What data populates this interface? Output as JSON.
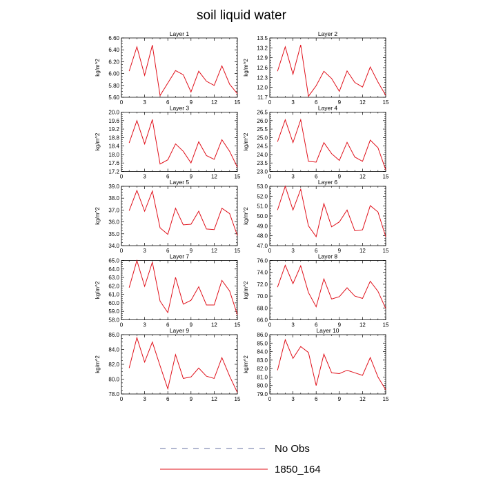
{
  "title": "soil liquid water",
  "legend": [
    {
      "label": "No Obs",
      "color": "#6670a0",
      "dash": true
    },
    {
      "label": "1850_164",
      "color": "#e0101a",
      "dash": false
    }
  ],
  "chart_data": [
    {
      "type": "line",
      "title": "Layer 1",
      "ylabel": "kg/m^2",
      "xlim": [
        0,
        15
      ],
      "ylim": [
        5.6,
        6.6
      ],
      "yticks": [
        "5.60",
        "5.80",
        "6.00",
        "6.20",
        "6.40",
        "6.60"
      ],
      "xticks": [
        "0",
        "3",
        "6",
        "9",
        "12",
        "15"
      ],
      "series": [
        {
          "name": "1850_164",
          "x": [
            1,
            2,
            3,
            4,
            5,
            6,
            7,
            8,
            9,
            10,
            11,
            12,
            13,
            14,
            15
          ],
          "values": [
            6.04,
            6.45,
            5.97,
            6.48,
            5.63,
            5.84,
            6.05,
            5.98,
            5.69,
            6.04,
            5.87,
            5.8,
            6.13,
            5.82,
            5.66
          ]
        }
      ]
    },
    {
      "type": "line",
      "title": "Layer 2",
      "ylabel": "kg/m^2",
      "xlim": [
        0,
        15
      ],
      "ylim": [
        11.7,
        13.5
      ],
      "yticks": [
        "11.7",
        "12.0",
        "12.3",
        "12.6",
        "12.9",
        "13.2",
        "13.5"
      ],
      "xticks": [
        "0",
        "3",
        "6",
        "9",
        "12",
        "15"
      ],
      "series": [
        {
          "name": "1850_164",
          "x": [
            1,
            2,
            3,
            4,
            5,
            6,
            7,
            8,
            9,
            10,
            11,
            12,
            13,
            14,
            15
          ],
          "values": [
            12.49,
            13.23,
            12.4,
            13.29,
            11.73,
            12.05,
            12.49,
            12.27,
            11.88,
            12.5,
            12.15,
            12.01,
            12.62,
            12.16,
            11.76
          ]
        }
      ]
    },
    {
      "type": "line",
      "title": "Layer 3",
      "ylabel": "kg/m^2",
      "xlim": [
        0,
        15
      ],
      "ylim": [
        17.2,
        20.0
      ],
      "yticks": [
        "17.2",
        "17.6",
        "18.0",
        "18.4",
        "18.8",
        "19.2",
        "19.6",
        "20.0"
      ],
      "xticks": [
        "0",
        "3",
        "6",
        "9",
        "12",
        "15"
      ],
      "series": [
        {
          "name": "1850_164",
          "x": [
            1,
            2,
            3,
            4,
            5,
            6,
            7,
            8,
            9,
            10,
            11,
            12,
            13,
            14,
            15
          ],
          "values": [
            18.55,
            19.6,
            18.5,
            19.65,
            17.55,
            17.75,
            18.5,
            18.15,
            17.6,
            18.6,
            17.95,
            17.77,
            18.7,
            18.15,
            17.4
          ]
        }
      ]
    },
    {
      "type": "line",
      "title": "Layer 4",
      "ylabel": "kg/m^2",
      "xlim": [
        0,
        15
      ],
      "ylim": [
        23.0,
        26.5
      ],
      "yticks": [
        "23.0",
        "23.5",
        "24.0",
        "24.5",
        "25.0",
        "25.5",
        "26.0",
        "26.5"
      ],
      "xticks": [
        "0",
        "3",
        "6",
        "9",
        "12",
        "15"
      ],
      "series": [
        {
          "name": "1850_164",
          "x": [
            1,
            2,
            3,
            4,
            5,
            6,
            7,
            8,
            9,
            10,
            11,
            12,
            13,
            14,
            15
          ],
          "values": [
            24.75,
            26.05,
            24.7,
            26.05,
            23.6,
            23.55,
            24.7,
            24.05,
            23.65,
            24.72,
            23.85,
            23.6,
            24.85,
            24.4,
            23.1
          ]
        }
      ]
    },
    {
      "type": "line",
      "title": "Layer 5",
      "ylabel": "kg/m^2",
      "xlim": [
        0,
        15
      ],
      "ylim": [
        34.0,
        39.0
      ],
      "yticks": [
        "34.0",
        "35.0",
        "36.0",
        "37.0",
        "38.0",
        "39.0"
      ],
      "xticks": [
        "0",
        "3",
        "6",
        "9",
        "12",
        "15"
      ],
      "series": [
        {
          "name": "1850_164",
          "x": [
            1,
            2,
            3,
            4,
            5,
            6,
            7,
            8,
            9,
            10,
            11,
            12,
            13,
            14,
            15
          ],
          "values": [
            36.95,
            38.65,
            36.9,
            38.6,
            35.5,
            34.95,
            37.15,
            35.75,
            35.8,
            36.9,
            35.4,
            35.35,
            37.15,
            36.7,
            34.85
          ]
        }
      ]
    },
    {
      "type": "line",
      "title": "Layer 6",
      "ylabel": "kg/m^2",
      "xlim": [
        0,
        15
      ],
      "ylim": [
        47.0,
        53.0
      ],
      "yticks": [
        "47.0",
        "48.0",
        "49.0",
        "50.0",
        "51.0",
        "52.0",
        "53.0"
      ],
      "xticks": [
        "0",
        "3",
        "6",
        "9",
        "12",
        "15"
      ],
      "series": [
        {
          "name": "1850_164",
          "x": [
            1,
            2,
            3,
            4,
            5,
            6,
            7,
            8,
            9,
            10,
            11,
            12,
            13,
            14,
            15
          ],
          "values": [
            50.6,
            53.0,
            50.6,
            52.7,
            49.0,
            47.9,
            51.25,
            48.9,
            49.4,
            50.6,
            48.5,
            48.6,
            51.05,
            50.4,
            47.9
          ]
        }
      ]
    },
    {
      "type": "line",
      "title": "Layer 7",
      "ylabel": "kg/m^2",
      "xlim": [
        0,
        15
      ],
      "ylim": [
        58.0,
        65.0
      ],
      "yticks": [
        "58.0",
        "59.0",
        "60.0",
        "61.0",
        "62.0",
        "63.0",
        "64.0",
        "65.0"
      ],
      "xticks": [
        "0",
        "3",
        "6",
        "9",
        "12",
        "15"
      ],
      "series": [
        {
          "name": "1850_164",
          "x": [
            1,
            2,
            3,
            4,
            5,
            6,
            7,
            8,
            9,
            10,
            11,
            12,
            13,
            14,
            15
          ],
          "values": [
            61.8,
            65.0,
            61.95,
            64.8,
            60.2,
            58.85,
            63.0,
            59.85,
            60.3,
            61.9,
            59.75,
            59.75,
            62.65,
            61.4,
            58.6
          ]
        }
      ]
    },
    {
      "type": "line",
      "title": "Layer 8",
      "ylabel": "kg/m^2",
      "xlim": [
        0,
        15
      ],
      "ylim": [
        66.0,
        76.0
      ],
      "yticks": [
        "66.0",
        "68.0",
        "70.0",
        "72.0",
        "74.0",
        "76.0"
      ],
      "xticks": [
        "0",
        "3",
        "6",
        "9",
        "12",
        "15"
      ],
      "series": [
        {
          "name": "1850_164",
          "x": [
            1,
            2,
            3,
            4,
            5,
            6,
            7,
            8,
            9,
            10,
            11,
            12,
            13,
            14,
            15
          ],
          "values": [
            71.5,
            75.2,
            72.1,
            75.1,
            70.6,
            68.2,
            72.9,
            69.5,
            69.9,
            71.4,
            70.0,
            69.6,
            72.5,
            70.8,
            67.9
          ]
        }
      ]
    },
    {
      "type": "line",
      "title": "Layer 9",
      "ylabel": "kg/m^2",
      "xlim": [
        0,
        15
      ],
      "ylim": [
        78.0,
        86.0
      ],
      "yticks": [
        "78.0",
        "80.0",
        "82.0",
        "84.0",
        "86.0"
      ],
      "xticks": [
        "0",
        "3",
        "6",
        "9",
        "12",
        "15"
      ],
      "series": [
        {
          "name": "1850_164",
          "x": [
            1,
            2,
            3,
            4,
            5,
            6,
            7,
            8,
            9,
            10,
            11,
            12,
            13,
            14,
            15
          ],
          "values": [
            81.5,
            85.6,
            82.3,
            85.0,
            81.8,
            78.7,
            83.3,
            80.1,
            80.3,
            81.5,
            80.4,
            80.1,
            82.9,
            80.4,
            78.2
          ]
        }
      ]
    },
    {
      "type": "line",
      "title": "Layer 10",
      "ylabel": "kg/m^2",
      "xlim": [
        0,
        15
      ],
      "ylim": [
        79.0,
        86.0
      ],
      "yticks": [
        "79.0",
        "80.0",
        "81.0",
        "82.0",
        "83.0",
        "84.0",
        "85.0",
        "86.0"
      ],
      "xticks": [
        "0",
        "3",
        "6",
        "9",
        "12",
        "15"
      ],
      "series": [
        {
          "name": "1850_164",
          "x": [
            1,
            2,
            3,
            4,
            5,
            6,
            7,
            8,
            9,
            10,
            11,
            12,
            13,
            14,
            15
          ],
          "values": [
            81.8,
            85.4,
            83.2,
            84.6,
            83.9,
            80.0,
            83.7,
            81.5,
            81.4,
            81.8,
            81.5,
            81.2,
            83.3,
            81.0,
            79.5
          ]
        }
      ]
    }
  ]
}
